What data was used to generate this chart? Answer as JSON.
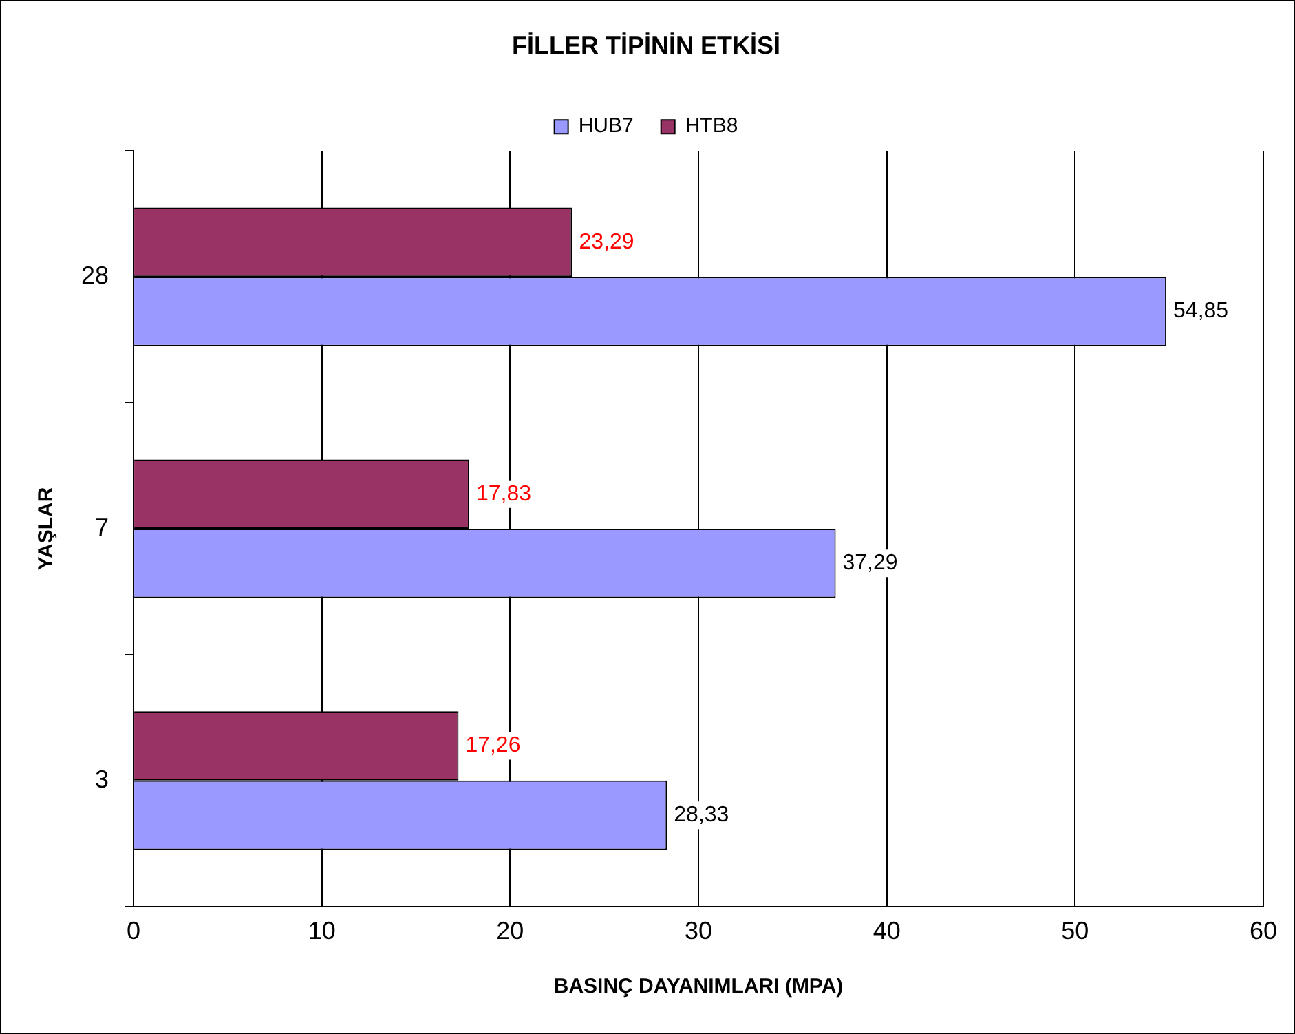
{
  "chart_data": {
    "type": "bar",
    "orientation": "horizontal",
    "title": "FİLLER TİPİNİN ETKİSİ",
    "xlabel": "BASINÇ DAYANIMLARI (MPA)",
    "ylabel": "YAŞLAR",
    "categories": [
      "28",
      "7",
      "3"
    ],
    "series": [
      {
        "name": "HUB7",
        "color": "#9999ff",
        "values": [
          54.85,
          37.29,
          28.33
        ],
        "value_labels": [
          "54,85",
          "37,29",
          "28,33"
        ]
      },
      {
        "name": "HTB8",
        "color": "#993366",
        "values": [
          23.29,
          17.83,
          17.26
        ],
        "value_labels": [
          "23,29",
          "17,83",
          "17,26"
        ]
      }
    ],
    "xlim": [
      0,
      60
    ],
    "xticks": [
      0,
      10,
      20,
      30,
      40,
      50,
      60
    ],
    "grid": "x",
    "legend": "top"
  }
}
